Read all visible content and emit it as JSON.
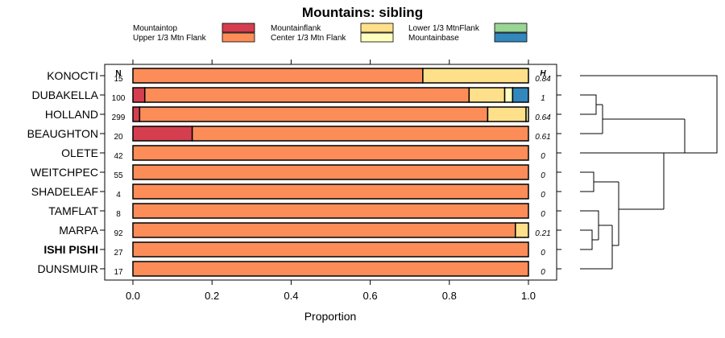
{
  "chart_data": {
    "type": "bar",
    "subtype": "stacked-horizontal-proportion",
    "title": "Mountains: sibling",
    "xlabel": "Proportion",
    "ylabel": "",
    "xlim": [
      0,
      1
    ],
    "x_ticks": [
      0.0,
      0.2,
      0.4,
      0.6,
      0.8,
      1.0
    ],
    "x_tick_labels": [
      "0.0",
      "0.2",
      "0.4",
      "0.6",
      "0.8",
      "1.0"
    ],
    "n_header": "N",
    "h_header": "H",
    "legend": [
      {
        "name": "Mountaintop",
        "color": "#d53e4f"
      },
      {
        "name": "Upper 1/3 Mtn Flank",
        "color": "#fc8d59"
      },
      {
        "name": "Mountainflank",
        "color": "#fee08b"
      },
      {
        "name": "Center 1/3 Mtn Flank",
        "color": "#ffffbf"
      },
      {
        "name": "Lower 1/3 MtnFlank",
        "color": "#99d594"
      },
      {
        "name": "Mountainbase",
        "color": "#3288bd"
      }
    ],
    "series_order": [
      "Mountaintop",
      "Upper 1/3 Mtn Flank",
      "Mountainflank",
      "Center 1/3 Mtn Flank",
      "Lower 1/3 MtnFlank",
      "Mountainbase"
    ],
    "categories": [
      {
        "name": "KONOCTI",
        "n": "15",
        "h": "0.84",
        "bold": false,
        "values": [
          0,
          0.733,
          0.267,
          0,
          0,
          0
        ]
      },
      {
        "name": "DUBAKELLA",
        "n": "100",
        "h": "1",
        "bold": false,
        "values": [
          0.03,
          0.82,
          0.09,
          0.02,
          0,
          0.04
        ]
      },
      {
        "name": "HOLLAND",
        "n": "299",
        "h": "0.64",
        "bold": false,
        "values": [
          0.017,
          0.88,
          0.097,
          0.006,
          0,
          0
        ]
      },
      {
        "name": "BEAUGHTON",
        "n": "20",
        "h": "0.61",
        "bold": false,
        "values": [
          0.15,
          0.85,
          0,
          0,
          0,
          0
        ]
      },
      {
        "name": "OLETE",
        "n": "42",
        "h": "0",
        "bold": false,
        "values": [
          0,
          1,
          0,
          0,
          0,
          0
        ]
      },
      {
        "name": "WEITCHPEC",
        "n": "55",
        "h": "0",
        "bold": false,
        "values": [
          0,
          1,
          0,
          0,
          0,
          0
        ]
      },
      {
        "name": "SHADELEAF",
        "n": "4",
        "h": "0",
        "bold": false,
        "values": [
          0,
          1,
          0,
          0,
          0,
          0
        ]
      },
      {
        "name": "TAMFLAT",
        "n": "8",
        "h": "0",
        "bold": false,
        "values": [
          0,
          1,
          0,
          0,
          0,
          0
        ]
      },
      {
        "name": "MARPA",
        "n": "92",
        "h": "0.21",
        "bold": false,
        "values": [
          0,
          0.967,
          0.033,
          0,
          0,
          0
        ]
      },
      {
        "name": "ISHI PISHI",
        "n": "27",
        "h": "0",
        "bold": true,
        "values": [
          0,
          1,
          0,
          0,
          0,
          0
        ]
      },
      {
        "name": "DUNSMUIR",
        "n": "17",
        "h": "0",
        "bold": false,
        "values": [
          0,
          1,
          0,
          0,
          0,
          0
        ]
      }
    ]
  }
}
